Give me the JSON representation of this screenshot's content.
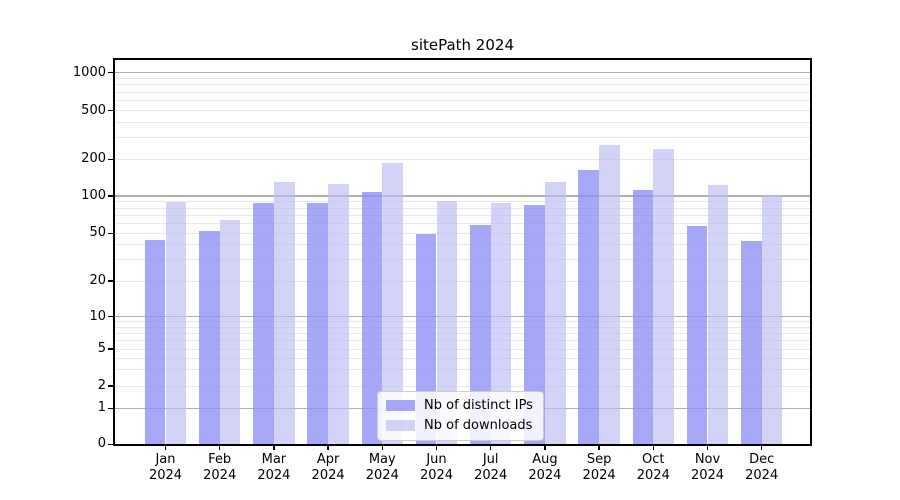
{
  "title": "sitePath 2024",
  "legend": {
    "items": [
      {
        "label": "Nb of distinct IPs",
        "color": "#8e8ef6",
        "opacity": 0.78
      },
      {
        "label": "Nb of downloads",
        "color": "#bcbcf4",
        "opacity": 0.65
      }
    ]
  },
  "axes": {
    "y_tick_labels": [
      "1000",
      "500",
      "200",
      "100",
      "50",
      "20",
      "10",
      "5",
      "2",
      "1",
      "0"
    ],
    "x_tick_labels": [
      "Jan 2024",
      "Feb 2024",
      "Mar 2024",
      "Apr 2024",
      "May 2024",
      "Jun 2024",
      "Jul 2024",
      "Aug 2024",
      "Sep 2024",
      "Oct 2024",
      "Nov 2024",
      "Dec 2024"
    ]
  },
  "chart_data": {
    "type": "bar",
    "title": "sitePath 2024",
    "categories": [
      "Jan 2024",
      "Feb 2024",
      "Mar 2024",
      "Apr 2024",
      "May 2024",
      "Jun 2024",
      "Jul 2024",
      "Aug 2024",
      "Sep 2024",
      "Oct 2024",
      "Nov 2024",
      "Dec 2024"
    ],
    "series": [
      {
        "name": "Nb of distinct IPs",
        "color": "#8e8ef6",
        "values": [
          44,
          52,
          88,
          88,
          107,
          49,
          58,
          85,
          163,
          111,
          57,
          43
        ]
      },
      {
        "name": "Nb of downloads",
        "color": "#bcbcf4",
        "values": [
          90,
          64,
          130,
          125,
          185,
          91,
          87,
          130,
          260,
          245,
          123,
          101
        ]
      }
    ],
    "yscale": "symlog",
    "ylim": [
      0,
      1270
    ],
    "yticks": [
      {
        "value": 1000,
        "label": "1000",
        "major": true
      },
      {
        "value": 500,
        "label": "500",
        "major": false
      },
      {
        "value": 200,
        "label": "200",
        "major": false
      },
      {
        "value": 100,
        "label": "100",
        "major": true
      },
      {
        "value": 50,
        "label": "50",
        "major": false
      },
      {
        "value": 20,
        "label": "20",
        "major": false
      },
      {
        "value": 10,
        "label": "10",
        "major": true
      },
      {
        "value": 5,
        "label": "5",
        "major": false
      },
      {
        "value": 2,
        "label": "2",
        "major": false
      },
      {
        "value": 1,
        "label": "1",
        "major": true
      },
      {
        "value": 0,
        "label": "0",
        "major": true
      }
    ],
    "minor_gridlines": [
      2,
      3,
      4,
      5,
      6,
      7,
      8,
      9,
      20,
      30,
      40,
      50,
      60,
      70,
      80,
      90,
      200,
      300,
      400,
      500,
      600,
      700,
      800,
      900
    ],
    "grid": true,
    "legend_position": "lower center inside"
  },
  "colors": {
    "background": "#ffffff",
    "bar_distinct_ips": "#8e8ef6",
    "bar_downloads": "#bcbcf4",
    "grid_major": "#b0b0b0",
    "grid_minor": "#e9e9e9",
    "spine": "#000000",
    "text": "#000000"
  }
}
